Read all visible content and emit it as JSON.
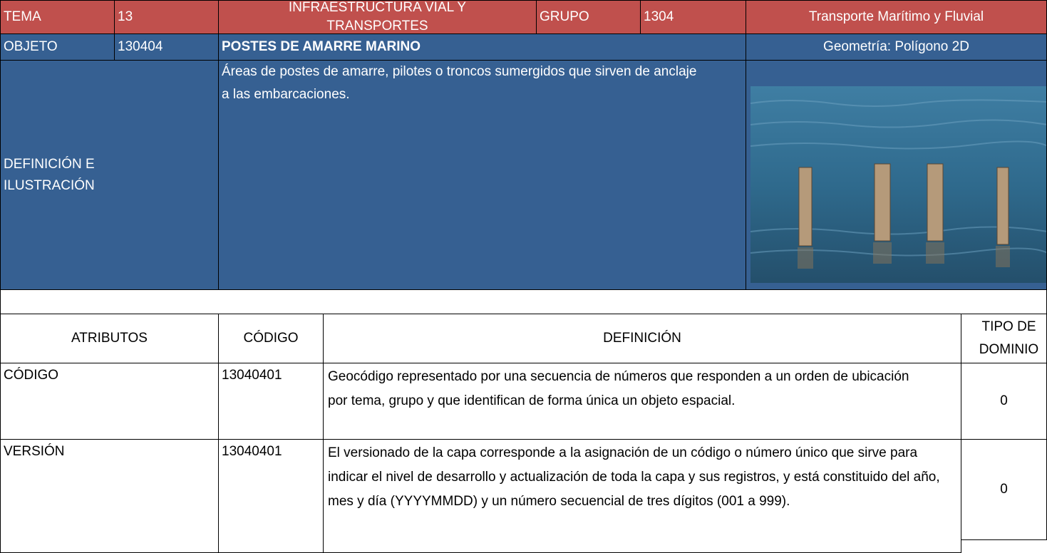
{
  "header": {
    "tema_label": "TEMA",
    "tema": "13",
    "tema_name": "INFRAESTRUCTURA VIAL Y TRANSPORTES",
    "grupo_label": "GRUPO",
    "grupo": "1304",
    "grupo_name": "Transporte Marítimo y Fluvial"
  },
  "object": {
    "label": "OBJETO",
    "code": "130404",
    "name": "POSTES DE AMARRE MARINO",
    "geometry": "Geometría: Polígono 2D"
  },
  "definition": {
    "label": "DEFINICIÓN E ILUSTRACIÓN",
    "text": "Áreas de postes de amarre, pilotes o troncos sumergidos que sirven de anclaje a las embarcaciones."
  },
  "table": {
    "columns": [
      "ATRIBUTOS",
      "CÓDIGO",
      "DEFINICIÓN",
      "TIPO DE DOMINIO"
    ],
    "rows": [
      [
        "CÓDIGO",
        "13040401",
        "Geocódigo representado por una secuencia de números que responden a un orden de ubicación por tema, grupo y que identifican de forma única un objeto espacial.",
        "0"
      ],
      [
        "VERSIÓN",
        "13040401",
        "El versionado de la capa corresponde a la asignación de un código o número único que sirve para indicar el nivel de desarrollo y actualización de toda la capa y sus registros, y está constituido del año, mes y día (YYYYMMDD) y un número secuencial de tres dígitos (001 a 999).",
        "0"
      ]
    ]
  }
}
